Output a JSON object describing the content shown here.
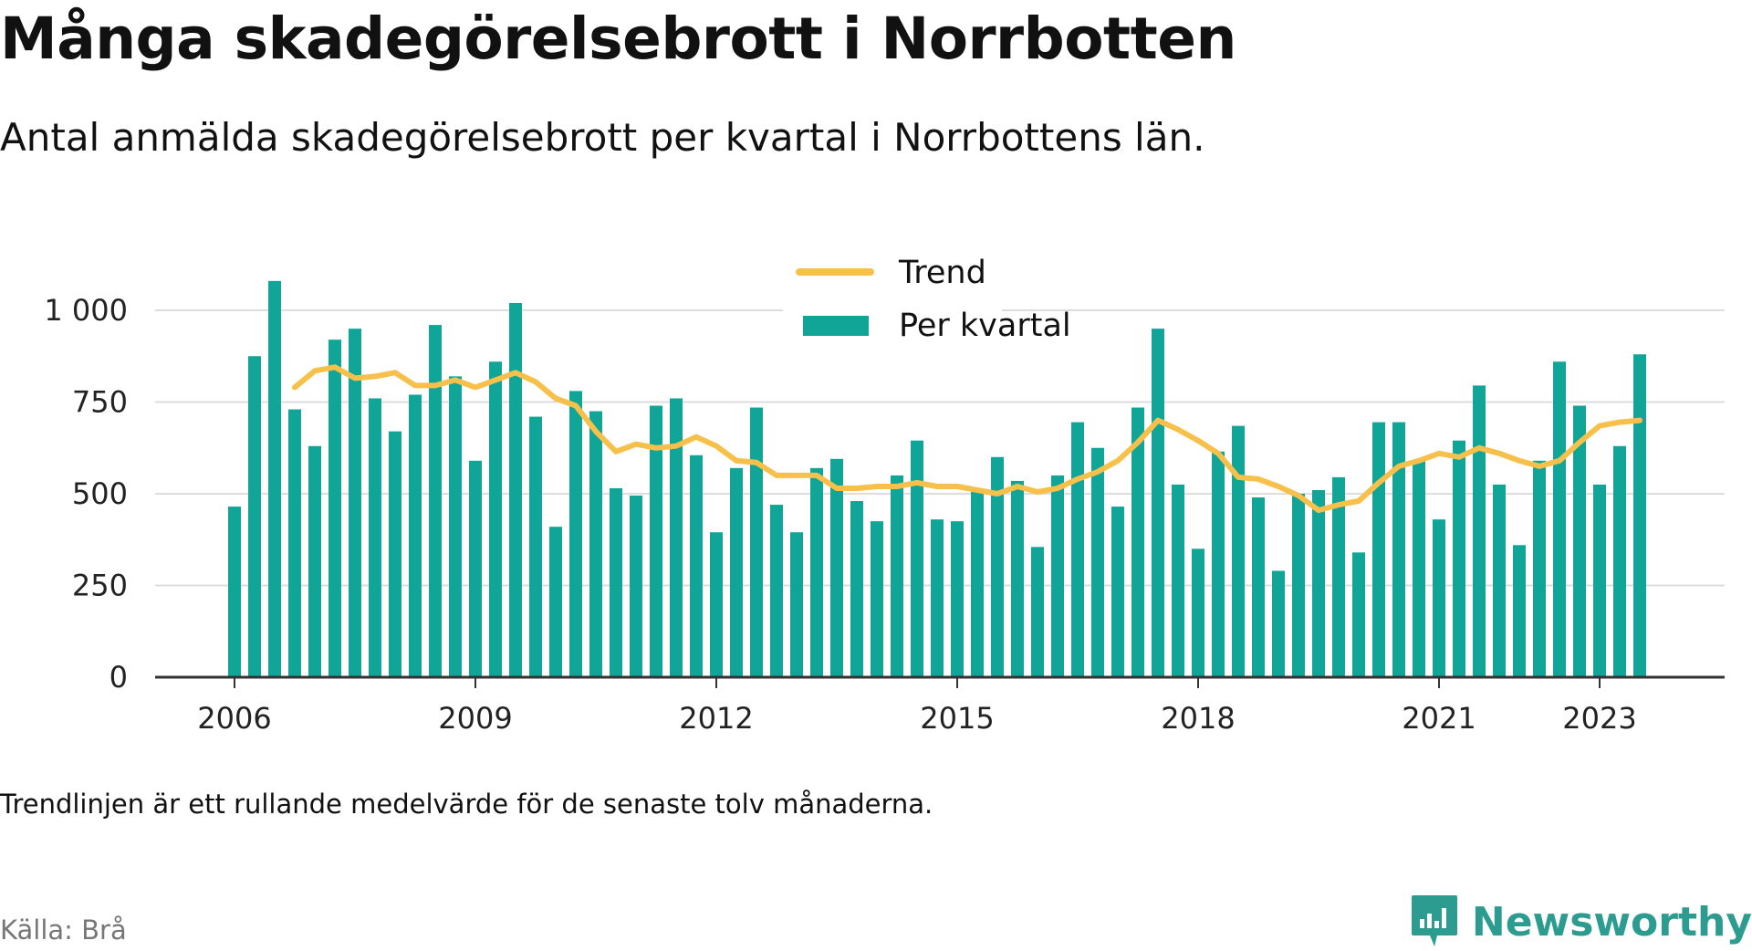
{
  "header": {
    "title": "Många skadegörelsebrott i Norrbotten",
    "subtitle": "Antal anmälda skadegörelsebrott per kvartal i Norrbottens län."
  },
  "footer": {
    "note": "Trendlinjen är ett rullande medelvärde för de senaste tolv månaderna.",
    "source": "Källa: Brå",
    "brand": "Newsworthy",
    "brand_icon": "newsworthy-logo-icon"
  },
  "colors": {
    "bar": "#10a596",
    "trend": "#f7c04a",
    "grid": "#dddddd",
    "axis": "#333333",
    "brand": "#2c9c90"
  },
  "chart_data": {
    "type": "bar",
    "title": "Många skadegörelsebrott i Norrbotten",
    "subtitle": "Antal anmälda skadegörelsebrott per kvartal i Norrbottens län.",
    "xlabel": "",
    "ylabel": "",
    "ylim": [
      0,
      1100
    ],
    "yticks": [
      0,
      250,
      500,
      750,
      1000
    ],
    "ytick_labels": [
      "0",
      "250",
      "500",
      "750",
      "1 000"
    ],
    "xticks": [
      {
        "label": "2006",
        "index": 0
      },
      {
        "label": "2009",
        "index": 12
      },
      {
        "label": "2012",
        "index": 24
      },
      {
        "label": "2015",
        "index": 36
      },
      {
        "label": "2018",
        "index": 48
      },
      {
        "label": "2021",
        "index": 60
      },
      {
        "label": "2023",
        "index": 68
      }
    ],
    "grid": true,
    "legend_position": "top-center",
    "x_start": "2006 Q1",
    "x_step": "quarter",
    "series": [
      {
        "name": "Per kvartal",
        "type": "bar",
        "color": "#10a596",
        "values": [
          465,
          875,
          1080,
          730,
          630,
          920,
          950,
          760,
          670,
          770,
          960,
          820,
          590,
          860,
          1020,
          710,
          410,
          780,
          725,
          515,
          495,
          740,
          760,
          605,
          395,
          570,
          735,
          470,
          395,
          570,
          595,
          480,
          425,
          550,
          645,
          430,
          425,
          505,
          600,
          535,
          355,
          550,
          695,
          625,
          465,
          735,
          950,
          525,
          350,
          615,
          685,
          490,
          290,
          500,
          510,
          545,
          340,
          695,
          695,
          590,
          430,
          645,
          795,
          525,
          360,
          590,
          860,
          740,
          525,
          630,
          880
        ]
      },
      {
        "name": "Trend",
        "type": "line",
        "color": "#f7c04a",
        "start_index": 3,
        "values": [
          790,
          835,
          845,
          815,
          820,
          830,
          795,
          795,
          810,
          790,
          810,
          830,
          805,
          760,
          740,
          670,
          615,
          635,
          625,
          630,
          655,
          630,
          590,
          585,
          550,
          550,
          550,
          515,
          515,
          520,
          520,
          530,
          520,
          520,
          510,
          500,
          520,
          505,
          515,
          540,
          560,
          590,
          640,
          700,
          675,
          645,
          610,
          545,
          540,
          520,
          495,
          455,
          470,
          480,
          530,
          575,
          590,
          610,
          600,
          625,
          610,
          590,
          575,
          590,
          640,
          685,
          695,
          700
        ]
      }
    ]
  }
}
